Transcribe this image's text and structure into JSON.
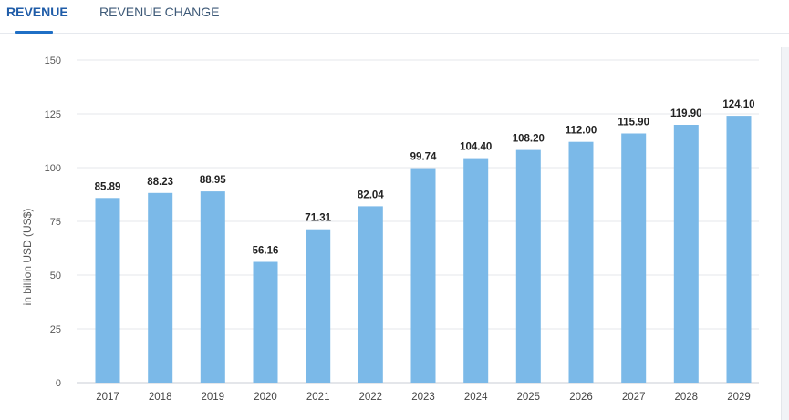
{
  "tabs": [
    {
      "label": "REVENUE",
      "active": true
    },
    {
      "label": "REVENUE CHANGE",
      "active": false
    }
  ],
  "colors": {
    "active_tab": "#1f5ca8",
    "bar": "#7bb9e8",
    "grid": "#e4e7eb"
  },
  "chart_data": {
    "type": "bar",
    "title": "",
    "xlabel": "",
    "ylabel": "in billion USD (US$)",
    "categories": [
      "2017",
      "2018",
      "2019",
      "2020",
      "2021",
      "2022",
      "2023",
      "2024",
      "2025",
      "2026",
      "2027",
      "2028",
      "2029"
    ],
    "values": [
      85.89,
      88.23,
      88.95,
      56.16,
      71.31,
      82.04,
      99.74,
      104.4,
      108.2,
      112.0,
      115.9,
      119.9,
      124.1
    ],
    "value_labels": [
      "85.89",
      "88.23",
      "88.95",
      "56.16",
      "71.31",
      "82.04",
      "99.74",
      "104.40",
      "108.20",
      "112.00",
      "115.90",
      "119.90",
      "124.10"
    ],
    "ylim": [
      0,
      150
    ],
    "yticks": [
      "0",
      "25",
      "50",
      "75",
      "100",
      "125",
      "150"
    ],
    "grid": true,
    "legend": "none"
  }
}
